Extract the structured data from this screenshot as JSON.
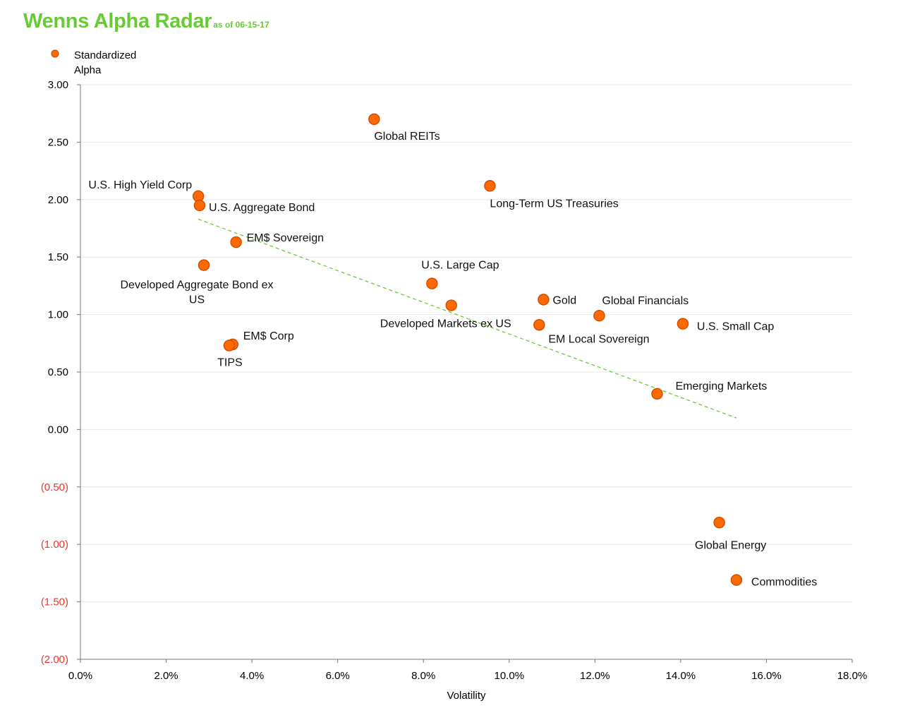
{
  "title": {
    "main": "Wenns Alpha Radar",
    "sub": "as of 06-15-17"
  },
  "colors": {
    "title": "#66cc33",
    "marker_fill": "#ff6a00",
    "marker_stroke": "#d24e00",
    "trendline": "#66cc33",
    "negative_tick": "#e8382c",
    "grid": "#e6e6e6",
    "axis": "#777777"
  },
  "chart_data": {
    "type": "scatter",
    "title": "",
    "xlabel": "Volatility",
    "ylabel": "",
    "xlim": [
      0,
      18
    ],
    "ylim": [
      -2,
      3
    ],
    "xticks": [
      {
        "value": 0,
        "label": "0.0%"
      },
      {
        "value": 2,
        "label": "2.0%"
      },
      {
        "value": 4,
        "label": "4.0%"
      },
      {
        "value": 6,
        "label": "6.0%"
      },
      {
        "value": 8,
        "label": "8.0%"
      },
      {
        "value": 10,
        "label": "10.0%"
      },
      {
        "value": 12,
        "label": "12.0%"
      },
      {
        "value": 14,
        "label": "14.0%"
      },
      {
        "value": 16,
        "label": "16.0%"
      },
      {
        "value": 18,
        "label": "18.0%"
      }
    ],
    "yticks": [
      {
        "value": 3,
        "label": "3.00"
      },
      {
        "value": 2.5,
        "label": "2.50"
      },
      {
        "value": 2,
        "label": "2.00"
      },
      {
        "value": 1.5,
        "label": "1.50"
      },
      {
        "value": 1,
        "label": "1.00"
      },
      {
        "value": 0.5,
        "label": "0.50"
      },
      {
        "value": 0,
        "label": "0.00"
      },
      {
        "value": -0.5,
        "label": "(0.50)"
      },
      {
        "value": -1,
        "label": "(1.00)"
      },
      {
        "value": -1.5,
        "label": "(1.50)"
      },
      {
        "value": -2,
        "label": "(2.00)"
      }
    ],
    "grid": {
      "horizontal": true,
      "vertical": false
    },
    "legend": {
      "placement": "top-left",
      "entries": [
        "Standardized",
        "Alpha"
      ]
    },
    "series": [
      {
        "name": "Standardized Alpha",
        "points": [
          {
            "label": "Global REITs",
            "x": 6.85,
            "y": 2.7,
            "anchor": "start",
            "dx": 0,
            "dy": 29
          },
          {
            "label": "Long-Term US Treasuries",
            "x": 9.55,
            "y": 2.12,
            "anchor": "start",
            "dx": 0,
            "dy": 30
          },
          {
            "label": "U.S. High Yield Corp",
            "x": 2.75,
            "y": 2.03,
            "anchor": "end",
            "dx": -9,
            "dy": -11
          },
          {
            "label": "U.S. Aggregate Bond",
            "x": 2.78,
            "y": 1.95,
            "anchor": "start",
            "dx": 13,
            "dy": 8
          },
          {
            "label": "EM$ Sovereign",
            "x": 3.63,
            "y": 1.63,
            "anchor": "start",
            "dx": 15,
            "dy": -1
          },
          {
            "label": "Developed Aggregate Bond ex",
            "label2": "US",
            "x": 2.88,
            "y": 1.43,
            "anchor": "middle",
            "dx": -10,
            "dy": 33
          },
          {
            "label": "U.S. Large Cap",
            "x": 8.2,
            "y": 1.27,
            "anchor": "middle",
            "dx": 40,
            "dy": -21
          },
          {
            "label": "Gold",
            "x": 10.8,
            "y": 1.13,
            "anchor": "start",
            "dx": 13,
            "dy": 6
          },
          {
            "label": "Global Financials",
            "x": 12.1,
            "y": 0.99,
            "anchor": "start",
            "dx": 4,
            "dy": -16
          },
          {
            "label": "Developed Markets ex US",
            "x": 8.65,
            "y": 1.08,
            "anchor": "middle",
            "dx": -8,
            "dy": 31
          },
          {
            "label": "EM Local Sovereign",
            "x": 10.7,
            "y": 0.91,
            "anchor": "start",
            "dx": 13,
            "dy": 25
          },
          {
            "label": "U.S. Small Cap",
            "x": 14.05,
            "y": 0.92,
            "anchor": "start",
            "dx": 20,
            "dy": 9
          },
          {
            "label": "EM$ Corp",
            "x": 3.55,
            "y": 0.74,
            "anchor": "start",
            "dx": 15,
            "dy": -7
          },
          {
            "label": "TIPS",
            "x": 3.47,
            "y": 0.73,
            "anchor": "middle",
            "dx": 1,
            "dy": 29
          },
          {
            "label": "Emerging Markets",
            "x": 13.45,
            "y": 0.31,
            "anchor": "start",
            "dx": 26,
            "dy": -6
          },
          {
            "label": "Global Energy",
            "x": 14.9,
            "y": -0.81,
            "anchor": "middle",
            "dx": 16,
            "dy": 37
          },
          {
            "label": "Commodities",
            "x": 15.3,
            "y": -1.31,
            "anchor": "start",
            "dx": 21,
            "dy": 8
          }
        ]
      }
    ],
    "trendline": {
      "x": [
        2.75,
        15.3
      ],
      "y": [
        1.83,
        0.1
      ],
      "style": "dashed"
    }
  }
}
